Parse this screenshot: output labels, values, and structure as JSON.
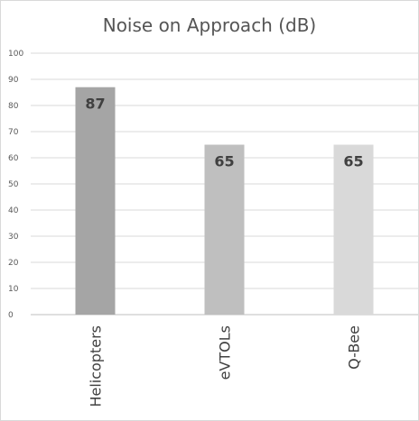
{
  "chart_data": {
    "type": "bar",
    "title": "Noise on Approach (dB)",
    "categories": [
      "Helicopters",
      "eVTOLs",
      "Q-Bee"
    ],
    "values": [
      87,
      65,
      65
    ],
    "data_labels": [
      "87",
      "65",
      "65"
    ],
    "bar_colors": [
      "#a5a5a5",
      "#bfbfbf",
      "#d9d9d9"
    ],
    "ylim": [
      0,
      100
    ],
    "yticks": [
      "0",
      "10",
      "20",
      "30",
      "40",
      "50",
      "60",
      "70",
      "80",
      "90",
      "100"
    ],
    "xlabel": "",
    "ylabel": "",
    "grid": true,
    "legend": "none"
  }
}
